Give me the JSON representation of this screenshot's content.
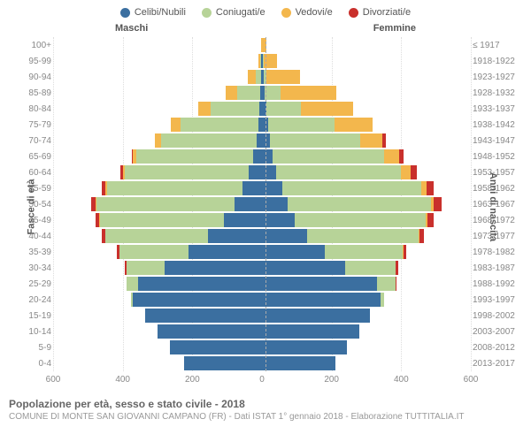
{
  "legend": [
    {
      "label": "Celibi/Nubili",
      "color": "#3b6fa0"
    },
    {
      "label": "Coniugati/e",
      "color": "#b7d398"
    },
    {
      "label": "Vedovi/e",
      "color": "#f3b74d"
    },
    {
      "label": "Divorziati/e",
      "color": "#c9302c"
    }
  ],
  "side_labels": {
    "m": "Maschi",
    "f": "Femmine"
  },
  "axis_labels": {
    "left": "Fasce di età",
    "right": "Anni di nascita"
  },
  "xmax": 600,
  "xticks_left": [
    600,
    400,
    200,
    0
  ],
  "xticks_right": [
    200,
    400,
    600
  ],
  "footer": {
    "t1": "Popolazione per età, sesso e stato civile - 2018",
    "t2": "COMUNE DI MONTE SAN GIOVANNI CAMPANO (FR) - Dati ISTAT 1° gennaio 2018 - Elaborazione TUTTITALIA.IT"
  },
  "age_groups": [
    {
      "age": "100+",
      "birth": "≤ 1917",
      "m": [
        0,
        0,
        2,
        0
      ],
      "f": [
        0,
        0,
        12,
        0
      ]
    },
    {
      "age": "95-99",
      "birth": "1918-1922",
      "m": [
        2,
        2,
        6,
        0
      ],
      "f": [
        2,
        2,
        38,
        0
      ]
    },
    {
      "age": "90-94",
      "birth": "1923-1927",
      "m": [
        3,
        15,
        22,
        0
      ],
      "f": [
        4,
        10,
        95,
        0
      ]
    },
    {
      "age": "85-89",
      "birth": "1928-1932",
      "m": [
        5,
        65,
        35,
        0
      ],
      "f": [
        8,
        45,
        160,
        0
      ]
    },
    {
      "age": "80-84",
      "birth": "1933-1937",
      "m": [
        8,
        140,
        35,
        0
      ],
      "f": [
        12,
        100,
        150,
        0
      ]
    },
    {
      "age": "75-79",
      "birth": "1938-1942",
      "m": [
        10,
        225,
        28,
        0
      ],
      "f": [
        18,
        190,
        110,
        0
      ]
    },
    {
      "age": "70-74",
      "birth": "1943-1947",
      "m": [
        15,
        275,
        18,
        0
      ],
      "f": [
        22,
        260,
        65,
        8
      ]
    },
    {
      "age": "65-69",
      "birth": "1948-1952",
      "m": [
        25,
        335,
        10,
        5
      ],
      "f": [
        30,
        320,
        45,
        12
      ]
    },
    {
      "age": "60-64",
      "birth": "1953-1957",
      "m": [
        38,
        355,
        6,
        8
      ],
      "f": [
        40,
        360,
        28,
        18
      ]
    },
    {
      "age": "55-59",
      "birth": "1958-1962",
      "m": [
        55,
        390,
        4,
        12
      ],
      "f": [
        58,
        400,
        15,
        20
      ]
    },
    {
      "age": "50-54",
      "birth": "1963-1967",
      "m": [
        80,
        395,
        2,
        15
      ],
      "f": [
        75,
        410,
        8,
        22
      ]
    },
    {
      "age": "45-49",
      "birth": "1968-1972",
      "m": [
        110,
        355,
        2,
        12
      ],
      "f": [
        95,
        375,
        5,
        18
      ]
    },
    {
      "age": "40-44",
      "birth": "1973-1977",
      "m": [
        155,
        295,
        0,
        10
      ],
      "f": [
        130,
        320,
        3,
        12
      ]
    },
    {
      "age": "35-39",
      "birth": "1978-1982",
      "m": [
        210,
        200,
        0,
        6
      ],
      "f": [
        180,
        225,
        2,
        8
      ]
    },
    {
      "age": "30-34",
      "birth": "1983-1987",
      "m": [
        280,
        110,
        0,
        4
      ],
      "f": [
        240,
        145,
        0,
        6
      ]
    },
    {
      "age": "25-29",
      "birth": "1988-1992",
      "m": [
        355,
        35,
        0,
        0
      ],
      "f": [
        330,
        55,
        0,
        2
      ]
    },
    {
      "age": "20-24",
      "birth": "1993-1997",
      "m": [
        370,
        6,
        0,
        0
      ],
      "f": [
        340,
        10,
        0,
        0
      ]
    },
    {
      "age": "15-19",
      "birth": "1998-2002",
      "m": [
        335,
        0,
        0,
        0
      ],
      "f": [
        310,
        0,
        0,
        0
      ]
    },
    {
      "age": "10-14",
      "birth": "2003-2007",
      "m": [
        300,
        0,
        0,
        0
      ],
      "f": [
        280,
        0,
        0,
        0
      ]
    },
    {
      "age": "5-9",
      "birth": "2008-2012",
      "m": [
        265,
        0,
        0,
        0
      ],
      "f": [
        245,
        0,
        0,
        0
      ]
    },
    {
      "age": "0-4",
      "birth": "2013-2017",
      "m": [
        225,
        0,
        0,
        0
      ],
      "f": [
        210,
        0,
        0,
        0
      ]
    }
  ]
}
